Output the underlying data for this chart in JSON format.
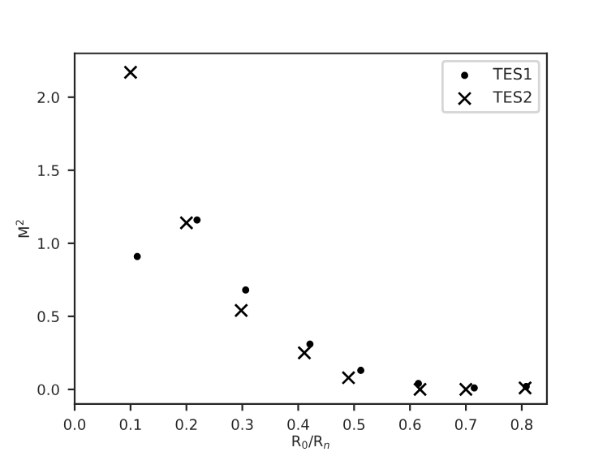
{
  "chart_data": {
    "type": "scatter",
    "xlabel": "R$_{0}$/R$_{n}$",
    "ylabel": "M$^{2}$",
    "series": [
      {
        "name": "TES1",
        "color": "#000000",
        "marker": "circle",
        "x": [
          0.112,
          0.219,
          0.306,
          0.421,
          0.512,
          0.615,
          0.715,
          0.808
        ],
        "values": [
          0.91,
          1.16,
          0.68,
          0.31,
          0.13,
          0.04,
          0.01,
          0.02
        ]
      },
      {
        "name": "TES2",
        "color": "#000000",
        "marker": "cross",
        "x": [
          0.1,
          0.2,
          0.298,
          0.411,
          0.49,
          0.618,
          0.7,
          0.806
        ],
        "values": [
          2.17,
          1.14,
          0.54,
          0.25,
          0.08,
          0.0,
          0.0,
          0.01
        ]
      }
    ],
    "xlim": [
      0,
      0.845
    ],
    "ylim": [
      -0.1,
      2.3
    ],
    "xticks": [
      {
        "value": 0,
        "label": "0.0"
      },
      0.1,
      0.2,
      0.3,
      0.4,
      0.5,
      0.6,
      0.7,
      0.8
    ],
    "yticks": [
      {
        "value": 0,
        "label": "0.0"
      },
      0.5,
      {
        "value": 1,
        "label": "1.0"
      },
      1.5,
      {
        "value": 2,
        "label": "2.0"
      }
    ],
    "grid": false,
    "legend": "top right"
  }
}
